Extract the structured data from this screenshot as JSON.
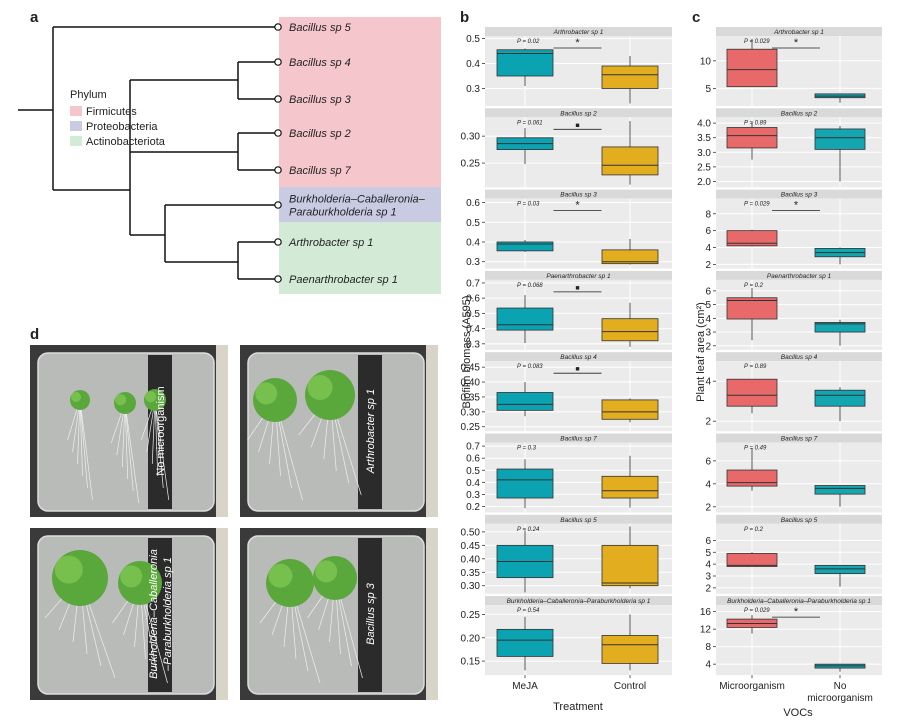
{
  "panel_a": {
    "label": "a",
    "leaves": [
      [
        "Bacillus sp 5"
      ],
      [
        "Bacillus sp 4"
      ],
      [
        "Bacillus sp 3"
      ],
      [
        "Bacillus sp 2"
      ],
      [
        "Bacillus sp 7"
      ],
      [
        "Burkholderia–Caballeronia–",
        "Paraburkholderia sp 1"
      ],
      [
        "Arthrobacter sp 1"
      ],
      [
        "Paenarthrobacter sp 1"
      ]
    ],
    "legend_title": "Phylum",
    "legend": [
      {
        "name": "Firmicutes",
        "color": "#f5c6cc"
      },
      {
        "name": "Proteobacteria",
        "color": "#c9cbe3"
      },
      {
        "name": "Actinobacteriota",
        "color": "#d3ebd6"
      }
    ]
  },
  "panel_b": {
    "label": "b",
    "x_axis_title": "Treatment",
    "y_axis_title": "Biofilm biomass (A595)",
    "groups": [
      "MeJA",
      "Control"
    ],
    "colors": [
      "#0ba3b1",
      "#e2ad1f"
    ],
    "facets": [
      {
        "title": "Arthrobacter sp 1",
        "p_label": "P = 0.02",
        "sig": "*",
        "ylim": [
          0.23,
          0.51
        ],
        "yticks": [
          0.3,
          0.4,
          0.5
        ],
        "boxes": [
          [
            0.31,
            0.35,
            0.44,
            0.455,
            0.46
          ],
          [
            0.24,
            0.3,
            0.355,
            0.39,
            0.43
          ]
        ]
      },
      {
        "title": "Bacillus sp 2",
        "p_label": "P = 0.061",
        "sig": "■",
        "ylim": [
          0.205,
          0.335
        ],
        "yticks": [
          {
            "value": 0.25,
            "label": "0.25"
          },
          {
            "value": 0.3,
            "label": "0.30"
          }
        ],
        "boxes": [
          [
            0.248,
            0.275,
            0.286,
            0.297,
            0.315
          ],
          [
            0.21,
            0.228,
            0.246,
            0.28,
            0.328
          ]
        ]
      },
      {
        "title": "Bacillus sp 3",
        "p_label": "P = 0.03",
        "sig": "*",
        "ylim": [
          0.265,
          0.62
        ],
        "yticks": [
          0.3,
          0.4,
          0.5,
          0.6
        ],
        "boxes": [
          [
            0.35,
            0.355,
            0.39,
            0.4,
            0.41
          ],
          [
            0.285,
            0.29,
            0.3,
            0.36,
            0.415
          ]
        ]
      },
      {
        "title": "Paenarthrobacter sp 1",
        "p_label": "P = 0.068",
        "sig": "■",
        "ylim": [
          0.26,
          0.72
        ],
        "yticks": [
          0.3,
          0.4,
          0.5,
          0.6,
          0.7
        ],
        "boxes": [
          [
            0.305,
            0.39,
            0.425,
            0.535,
            0.62
          ],
          [
            0.28,
            0.32,
            0.38,
            0.465,
            0.57
          ]
        ]
      },
      {
        "title": "Bacillus sp 4",
        "p_label": "P = 0.083",
        "sig": "■",
        "ylim": [
          0.235,
          0.47
        ],
        "yticks": [
          {
            "value": 0.25,
            "label": "0.25"
          },
          {
            "value": 0.3,
            "label": "0.30"
          },
          {
            "value": 0.35,
            "label": "0.35"
          },
          {
            "value": 0.4,
            "label": "0.40"
          },
          {
            "value": 0.45,
            "label": "0.45"
          }
        ],
        "boxes": [
          [
            0.285,
            0.305,
            0.325,
            0.365,
            0.4
          ],
          [
            0.265,
            0.275,
            0.3,
            0.34,
            0.345
          ]
        ]
      },
      {
        "title": "Bacillus sp 7",
        "p_label": "P = 0.3",
        "sig": null,
        "ylim": [
          0.15,
          0.73
        ],
        "yticks": [
          0.2,
          0.3,
          0.4,
          0.5,
          0.6,
          0.7
        ],
        "boxes": [
          [
            0.185,
            0.27,
            0.42,
            0.51,
            0.59
          ],
          [
            0.19,
            0.27,
            0.33,
            0.45,
            0.62
          ]
        ]
      },
      {
        "title": "Bacillus sp 5",
        "p_label": "P = 0.24",
        "sig": null,
        "ylim": [
          0.27,
          0.53
        ],
        "yticks": [
          {
            "value": 0.3,
            "label": "0.30"
          },
          {
            "value": 0.35,
            "label": "0.35"
          },
          {
            "value": 0.4,
            "label": "0.40"
          },
          {
            "value": 0.45,
            "label": "0.45"
          },
          {
            "value": 0.5,
            "label": "0.50"
          }
        ],
        "boxes": [
          [
            0.275,
            0.33,
            0.39,
            0.45,
            0.505
          ],
          [
            0.29,
            0.3,
            0.31,
            0.45,
            0.52
          ]
        ]
      },
      {
        "title": "Burkholderia–Caballeronia–Paraburkholderia sp 1",
        "p_label": "P = 0.54",
        "sig": null,
        "ylim": [
          0.12,
          0.27
        ],
        "yticks": [
          0.15,
          {
            "value": 0.2,
            "label": "0.20"
          },
          0.25
        ],
        "boxes": [
          [
            0.13,
            0.16,
            0.195,
            0.218,
            0.245
          ],
          [
            0.13,
            0.145,
            0.185,
            0.205,
            0.25
          ]
        ]
      }
    ]
  },
  "panel_c": {
    "label": "c",
    "x_axis_title": "VOCs",
    "y_axis_title": "Plant leaf area (cm²)",
    "groups": [
      [
        "Microorganism"
      ],
      [
        "No",
        "microorganism"
      ]
    ],
    "colors": [
      "#e8696a",
      "#14a6b0"
    ],
    "facets": [
      {
        "title": "Arthrobacter sp 1",
        "p_label": "P = 0.029",
        "sig": "*",
        "ylim": [
          1.8,
          14.5
        ],
        "yticks": [
          5,
          10
        ],
        "boxes": [
          [
            5.3,
            5.3,
            8.4,
            12.1,
            14
          ],
          [
            2.4,
            3.3,
            3.6,
            4.0,
            4.1
          ]
        ]
      },
      {
        "title": "Bacillus sp 2",
        "p_label": "P = 0.89",
        "sig": null,
        "ylim": [
          1.8,
          4.2
        ],
        "yticks": [
          {
            "value": 2,
            "label": "2.0"
          },
          2.5,
          {
            "value": 3,
            "label": "3.0"
          },
          3.5,
          {
            "value": 4,
            "label": "4.0"
          }
        ],
        "boxes": [
          [
            2.75,
            3.15,
            3.57,
            3.85,
            4.05
          ],
          [
            2.0,
            3.1,
            3.5,
            3.8,
            3.9
          ]
        ]
      },
      {
        "title": "Bacillus sp 3",
        "p_label": "P = 0.029",
        "sig": "*",
        "ylim": [
          1.5,
          9.8
        ],
        "yticks": [
          2,
          4,
          6,
          8
        ],
        "boxes": [
          [
            4.1,
            4.2,
            4.5,
            6.0,
            6.1
          ],
          [
            2.0,
            2.9,
            3.4,
            3.9,
            4.0
          ]
        ]
      },
      {
        "title": "Paenarthrobacter sp 1",
        "p_label": "P = 0.2",
        "sig": null,
        "ylim": [
          1.7,
          6.8
        ],
        "yticks": [
          2,
          3,
          4,
          5,
          6
        ],
        "boxes": [
          [
            2.4,
            3.95,
            5.3,
            5.5,
            6.2
          ],
          [
            2.0,
            3.0,
            3.6,
            3.7,
            3.9
          ]
        ]
      },
      {
        "title": "Bacillus sp 4",
        "p_label": "P = 0.89",
        "sig": null,
        "ylim": [
          1.5,
          5.0
        ],
        "yticks": [
          2,
          4
        ],
        "boxes": [
          [
            2.4,
            2.75,
            3.3,
            4.1,
            4.1
          ],
          [
            2.0,
            2.75,
            3.3,
            3.55,
            3.7
          ]
        ]
      },
      {
        "title": "Bacillus sp 7",
        "p_label": "P = 0.49",
        "sig": null,
        "ylim": [
          1.5,
          7.6
        ],
        "yticks": [
          2,
          4,
          6
        ],
        "boxes": [
          [
            3.4,
            3.8,
            4.1,
            5.2,
            7.1
          ],
          [
            2.0,
            3.1,
            3.6,
            3.85,
            3.9
          ]
        ]
      },
      {
        "title": "Bacillus sp 5",
        "p_label": "P = 0.2",
        "sig": null,
        "ylim": [
          1.5,
          7.4
        ],
        "yticks": [
          2,
          3,
          4,
          5,
          6
        ],
        "boxes": [
          [
            3.8,
            3.8,
            3.9,
            4.9,
            5.0
          ],
          [
            2.1,
            3.2,
            3.6,
            3.9,
            3.9
          ]
        ]
      },
      {
        "title": "Burkholderia–Caballeronia–Paraburkholderia sp 1",
        "p_label": "P = 0.029",
        "sig": "*",
        "ylim": [
          1.5,
          17.5
        ],
        "yticks": [
          4,
          8,
          12,
          16
        ],
        "boxes": [
          [
            11.0,
            12.4,
            13.3,
            14.3,
            15.2
          ],
          [
            2.3,
            3.1,
            3.6,
            4.0,
            4.1
          ]
        ]
      }
    ]
  },
  "panel_d": {
    "label": "d",
    "photos": [
      [
        "No microorganism"
      ],
      [
        "Arthrobacter sp 1"
      ],
      [
        "Burkholderia–Caballeronia",
        "–Paraburkholderia sp 1"
      ],
      [
        "Bacillus sp 3"
      ]
    ]
  }
}
